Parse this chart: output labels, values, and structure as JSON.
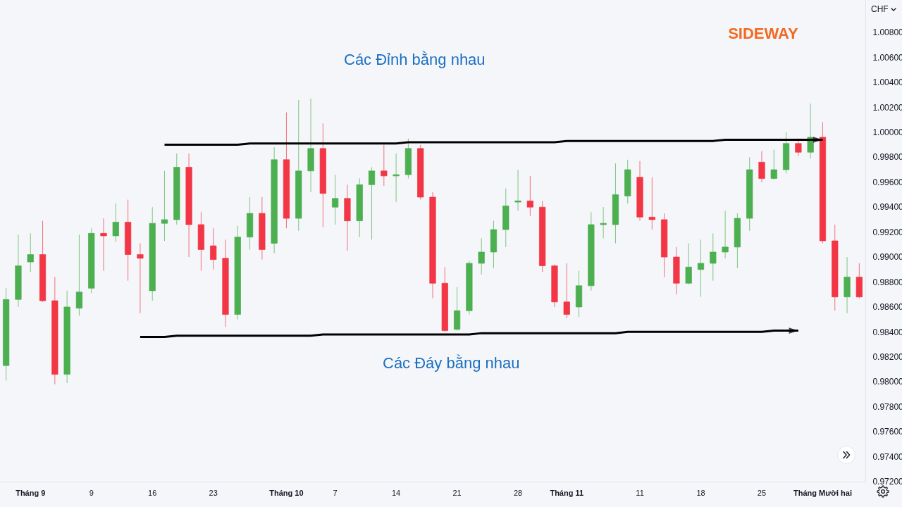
{
  "chart_data": {
    "type": "candlestick",
    "title": "SIDEWAY",
    "ylabel": "CHF",
    "annotations": [
      "Các Đỉnh bằng nhau",
      "Các Đáy bằng nhau"
    ],
    "categories": [
      null,
      null,
      "Tháng 9",
      null,
      null,
      null,
      null,
      "9",
      null,
      null,
      null,
      null,
      "16",
      null,
      null,
      null,
      null,
      "23",
      null,
      null,
      null,
      null,
      null,
      "Tháng 10",
      null,
      null,
      null,
      "7",
      null,
      null,
      null,
      null,
      "14",
      null,
      null,
      null,
      null,
      "21",
      null,
      null,
      null,
      null,
      "28",
      null,
      null,
      null,
      "Tháng 11",
      null,
      null,
      null,
      null,
      null,
      "11",
      null,
      null,
      null,
      null,
      "18",
      null,
      null,
      null,
      null,
      "25",
      null,
      null,
      null,
      null,
      "Tháng Mười hai",
      null,
      null,
      null
    ],
    "ohlc": [
      [
        0.9813,
        0.9875,
        0.9801,
        0.9866
      ],
      [
        0.9866,
        0.9918,
        0.986,
        0.9893
      ],
      [
        0.9896,
        0.9919,
        0.9888,
        0.9902
      ],
      [
        0.9902,
        0.9929,
        0.9864,
        0.9865
      ],
      [
        0.9865,
        0.9884,
        0.9798,
        0.9806
      ],
      [
        0.9806,
        0.9873,
        0.9799,
        0.986
      ],
      [
        0.9859,
        0.9918,
        0.9853,
        0.9872
      ],
      [
        0.9875,
        0.9923,
        0.9871,
        0.9919
      ],
      [
        0.9919,
        0.9931,
        0.9889,
        0.9917
      ],
      [
        0.9917,
        0.9943,
        0.9912,
        0.9928
      ],
      [
        0.9928,
        0.9946,
        0.9881,
        0.9902
      ],
      [
        0.9902,
        0.9911,
        0.9855,
        0.9899
      ],
      [
        0.9873,
        0.994,
        0.9865,
        0.9927
      ],
      [
        0.9927,
        0.9969,
        0.9913,
        0.993
      ],
      [
        0.993,
        0.9983,
        0.9926,
        0.9972
      ],
      [
        0.9972,
        0.9983,
        0.99,
        0.9926
      ],
      [
        0.9926,
        0.9936,
        0.9889,
        0.9906
      ],
      [
        0.9909,
        0.9923,
        0.989,
        0.9898
      ],
      [
        0.9899,
        0.9914,
        0.9844,
        0.9854
      ],
      [
        0.9854,
        0.9925,
        0.985,
        0.9916
      ],
      [
        0.9916,
        0.9948,
        0.9906,
        0.9935
      ],
      [
        0.9935,
        0.9948,
        0.9898,
        0.9906
      ],
      [
        0.9911,
        0.9988,
        0.9903,
        0.9978
      ],
      [
        0.9978,
        1.0016,
        0.9923,
        0.9931
      ],
      [
        0.9931,
        1.0026,
        0.9921,
        0.9969
      ],
      [
        0.9969,
        1.0027,
        0.9952,
        0.9987
      ],
      [
        0.9987,
        1.0007,
        0.9924,
        0.9951
      ],
      [
        0.994,
        0.9966,
        0.9926,
        0.9947
      ],
      [
        0.9947,
        0.9958,
        0.9905,
        0.9929
      ],
      [
        0.9929,
        0.9963,
        0.9916,
        0.9958
      ],
      [
        0.9958,
        0.9972,
        0.9914,
        0.9969
      ],
      [
        0.9969,
        0.999,
        0.9957,
        0.9965
      ],
      [
        0.9965,
        0.9983,
        0.9944,
        0.9966
      ],
      [
        0.9966,
        0.9995,
        0.9963,
        0.9987
      ],
      [
        0.9987,
        0.999,
        0.9946,
        0.9948
      ],
      [
        0.9948,
        0.9952,
        0.9867,
        0.9879
      ],
      [
        0.9879,
        0.9892,
        0.984,
        0.9841
      ],
      [
        0.9842,
        0.9876,
        0.9841,
        0.9857
      ],
      [
        0.9857,
        0.9897,
        0.9854,
        0.9895
      ],
      [
        0.9895,
        0.9915,
        0.9886,
        0.9904
      ],
      [
        0.9904,
        0.9929,
        0.9891,
        0.9922
      ],
      [
        0.9922,
        0.9955,
        0.9908,
        0.9941
      ],
      [
        0.9944,
        0.997,
        0.9937,
        0.9945
      ],
      [
        0.9945,
        0.9965,
        0.9933,
        0.994
      ],
      [
        0.994,
        0.9945,
        0.9888,
        0.9893
      ],
      [
        0.9893,
        0.9894,
        0.986,
        0.9864
      ],
      [
        0.9864,
        0.9895,
        0.9851,
        0.9854
      ],
      [
        0.986,
        0.9889,
        0.9852,
        0.9877
      ],
      [
        0.9877,
        0.9936,
        0.9873,
        0.9926
      ],
      [
        0.9926,
        0.994,
        0.9915,
        0.9927
      ],
      [
        0.9926,
        0.9975,
        0.9911,
        0.995
      ],
      [
        0.9949,
        0.9978,
        0.9943,
        0.997
      ],
      [
        0.9964,
        0.9977,
        0.9929,
        0.9932
      ],
      [
        0.9932,
        0.9964,
        0.9922,
        0.993
      ],
      [
        0.993,
        0.9935,
        0.9884,
        0.99
      ],
      [
        0.99,
        0.9908,
        0.987,
        0.9879
      ],
      [
        0.9879,
        0.9911,
        0.9878,
        0.9892
      ],
      [
        0.989,
        0.9914,
        0.9868,
        0.9895
      ],
      [
        0.9895,
        0.9919,
        0.9881,
        0.9904
      ],
      [
        0.9904,
        0.9937,
        0.9899,
        0.9908
      ],
      [
        0.9908,
        0.9935,
        0.9891,
        0.9931
      ],
      [
        0.9931,
        0.998,
        0.9921,
        0.997
      ],
      [
        0.9976,
        0.9985,
        0.996,
        0.9963
      ],
      [
        0.9963,
        0.9986,
        0.9962,
        0.997
      ],
      [
        0.997,
        1.0,
        0.9967,
        0.9991
      ],
      [
        0.9991,
        0.9995,
        0.9981,
        0.9984
      ],
      [
        0.9984,
        1.0023,
        0.9979,
        0.9996
      ],
      [
        0.9996,
        1.0008,
        0.9911,
        0.9913
      ],
      [
        0.9913,
        0.9926,
        0.9857,
        0.9868
      ],
      [
        0.9868,
        0.99,
        0.9855,
        0.9884
      ],
      [
        0.9884,
        0.9895,
        0.9867,
        0.9868
      ]
    ],
    "colors": [
      "#4caf50",
      "#4caf50",
      "#4caf50",
      "#f23645",
      "#f23645",
      "#4caf50",
      "#4caf50",
      "#4caf50",
      "#f23645",
      "#4caf50",
      "#f23645",
      "#f23645",
      "#4caf50",
      "#4caf50",
      "#4caf50",
      "#f23645",
      "#f23645",
      "#f23645",
      "#f23645",
      "#4caf50",
      "#4caf50",
      "#f23645",
      "#4caf50",
      "#f23645",
      "#4caf50",
      "#4caf50",
      "#f23645",
      "#4caf50",
      "#f23645",
      "#4caf50",
      "#4caf50",
      "#f23645",
      "#4caf50",
      "#4caf50",
      "#f23645",
      "#f23645",
      "#f23645",
      "#4caf50",
      "#4caf50",
      "#4caf50",
      "#4caf50",
      "#4caf50",
      "#4caf50",
      "#f23645",
      "#f23645",
      "#f23645",
      "#f23645",
      "#4caf50",
      "#4caf50",
      "#4caf50",
      "#4caf50",
      "#4caf50",
      "#f23645",
      "#f23645",
      "#f23645",
      "#f23645",
      "#4caf50",
      "#4caf50",
      "#4caf50",
      "#4caf50",
      "#4caf50",
      "#4caf50",
      "#f23645",
      "#4caf50",
      "#4caf50",
      "#f23645",
      "#4caf50",
      "#f23645",
      "#f23645",
      "#4caf50",
      "#f23645"
    ],
    "series": [
      {
        "type": "line",
        "color": "#000000",
        "values": [
          null,
          null,
          null,
          null,
          null,
          null,
          null,
          null,
          null,
          null,
          null,
          null,
          null,
          0.999,
          0.999,
          0.999,
          0.999,
          0.999,
          0.999,
          0.999,
          0.9991,
          0.9991,
          0.9991,
          0.9991,
          0.9991,
          0.9991,
          0.9991,
          0.9991,
          0.9991,
          0.9991,
          0.9991,
          0.9991,
          0.9991,
          0.9992,
          0.9992,
          0.9992,
          0.9992,
          0.9992,
          0.9992,
          0.9992,
          0.9992,
          0.9992,
          0.9992,
          0.9992,
          0.9992,
          0.9992,
          0.9993,
          0.9993,
          0.9993,
          0.9993,
          0.9993,
          0.9993,
          0.9993,
          0.9993,
          0.9993,
          0.9993,
          0.9993,
          0.9993,
          0.9993,
          0.9994,
          0.9994,
          0.9994,
          0.9994,
          0.9994,
          0.9994,
          0.9994,
          0.9994,
          0.9994,
          null,
          null,
          null
        ]
      },
      {
        "type": "line",
        "color": "#000000",
        "values": [
          null,
          null,
          null,
          null,
          null,
          null,
          null,
          null,
          null,
          null,
          null,
          0.9836,
          0.9836,
          0.9836,
          0.9837,
          0.9837,
          0.9837,
          0.9837,
          0.9837,
          0.9837,
          0.9837,
          0.9837,
          0.9837,
          0.9837,
          0.9837,
          0.9837,
          0.9838,
          0.9838,
          0.9838,
          0.9838,
          0.9838,
          0.9838,
          0.9838,
          0.9838,
          0.9838,
          0.9838,
          0.9838,
          0.9838,
          0.9838,
          0.9839,
          0.9839,
          0.9839,
          0.9839,
          0.9839,
          0.9839,
          0.9839,
          0.9839,
          0.9839,
          0.9839,
          0.9839,
          0.9839,
          0.984,
          0.984,
          0.984,
          0.984,
          0.984,
          0.984,
          0.984,
          0.984,
          0.984,
          0.984,
          0.984,
          0.984,
          0.9841,
          0.9841,
          0.9841,
          null,
          null,
          null,
          null,
          null
        ]
      }
    ],
    "ylim": [
      0.972,
      1.0106
    ],
    "yticks": [
      {
        "value": 0.972,
        "label": "0.97200"
      },
      {
        "value": 0.974,
        "label": "0.97400"
      },
      {
        "value": 0.976,
        "label": "0.97600"
      },
      {
        "value": 0.978,
        "label": "0.97800"
      },
      {
        "value": 0.98,
        "label": "0.98000"
      },
      {
        "value": 0.982,
        "label": "0.98200"
      },
      {
        "value": 0.984,
        "label": "0.98400"
      },
      {
        "value": 0.986,
        "label": "0.98600"
      },
      {
        "value": 0.988,
        "label": "0.98800"
      },
      {
        "value": 0.99,
        "label": "0.99000"
      },
      {
        "value": 0.992,
        "label": "0.99200"
      },
      {
        "value": 0.994,
        "label": "0.99400"
      },
      {
        "value": 0.996,
        "label": "0.99600"
      },
      {
        "value": 0.998,
        "label": "0.99800"
      },
      {
        "value": 1.0,
        "label": "1.00000"
      },
      {
        "value": 1.002,
        "label": "1.00200"
      },
      {
        "value": 1.004,
        "label": "1.00400"
      },
      {
        "value": 1.006,
        "label": "1.00600"
      },
      {
        "value": 1.008,
        "label": "1.00800"
      }
    ]
  }
}
